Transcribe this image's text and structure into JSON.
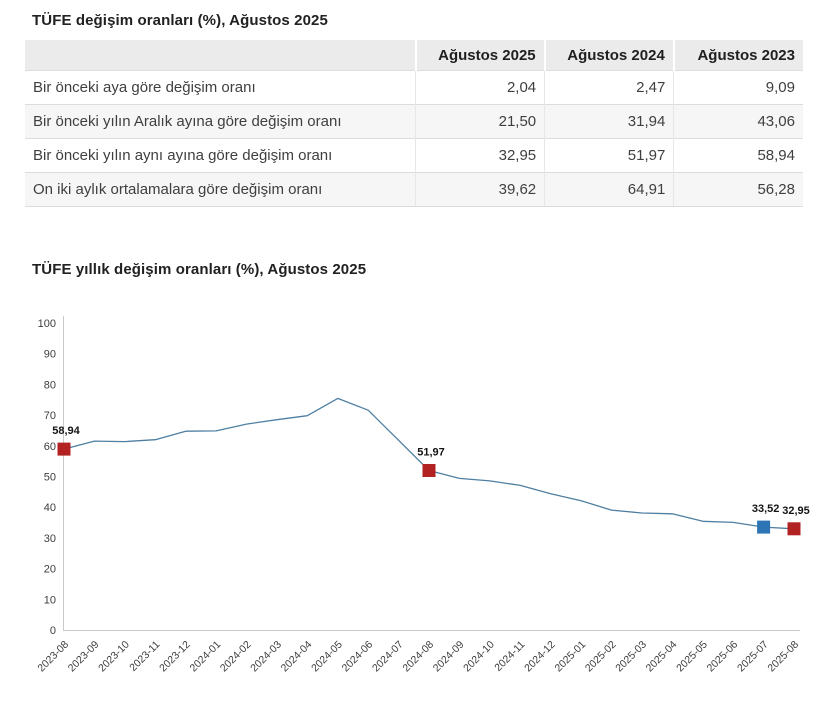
{
  "table_section": {
    "title": "TÜFE değişim oranları (%), Ağustos 2025",
    "columns": [
      "Ağustos 2025",
      "Ağustos 2024",
      "Ağustos 2023"
    ],
    "rows": [
      {
        "label": "Bir önceki aya göre değişim oranı",
        "values": [
          "2,04",
          "2,47",
          "9,09"
        ]
      },
      {
        "label": "Bir önceki yılın Aralık ayına göre değişim oranı",
        "values": [
          "21,50",
          "31,94",
          "43,06"
        ]
      },
      {
        "label": "Bir önceki yılın aynı ayına göre değişim oranı",
        "values": [
          "32,95",
          "51,97",
          "58,94"
        ]
      },
      {
        "label": "On iki aylık ortalamalara göre değişim oranı",
        "values": [
          "39,62",
          "64,91",
          "56,28"
        ]
      }
    ]
  },
  "chart_section": {
    "title": "TÜFE yıllık değişim oranları (%), Ağustos 2025"
  },
  "chart_data": {
    "type": "line",
    "title": "TÜFE yıllık değişim oranları (%), Ağustos 2025",
    "x": [
      "2023-08",
      "2023-09",
      "2023-10",
      "2023-11",
      "2023-12",
      "2024-01",
      "2024-02",
      "2024-03",
      "2024-04",
      "2024-05",
      "2024-06",
      "2024-07",
      "2024-08",
      "2024-09",
      "2024-10",
      "2024-11",
      "2024-12",
      "2025-01",
      "2025-02",
      "2025-03",
      "2025-04",
      "2025-05",
      "2025-06",
      "2025-07",
      "2025-08"
    ],
    "values": [
      58.94,
      61.53,
      61.36,
      61.98,
      64.77,
      64.86,
      67.07,
      68.5,
      69.8,
      75.45,
      71.6,
      61.78,
      51.97,
      49.38,
      48.58,
      47.09,
      44.38,
      42.12,
      39.05,
      38.1,
      37.86,
      35.41,
      35.05,
      33.52,
      32.95
    ],
    "ylim": [
      0,
      100
    ],
    "y_ticks": [
      0,
      10,
      20,
      30,
      40,
      50,
      60,
      70,
      80,
      90,
      100
    ],
    "grid": false,
    "legend": "none",
    "line_color": "#4e7fa3",
    "axis_color": "#c9c9c9",
    "tick_text_color": "#3d3d3d",
    "highlighted_points": [
      {
        "x": "2023-08",
        "value": 58.94,
        "label": "58,94",
        "color": "#b22222"
      },
      {
        "x": "2024-08",
        "value": 51.97,
        "label": "51,97",
        "color": "#b22222"
      },
      {
        "x": "2025-07",
        "value": 33.52,
        "label": "33,52",
        "color": "#2e75b6"
      },
      {
        "x": "2025-08",
        "value": 32.95,
        "label": "32,95",
        "color": "#b22222"
      }
    ]
  }
}
